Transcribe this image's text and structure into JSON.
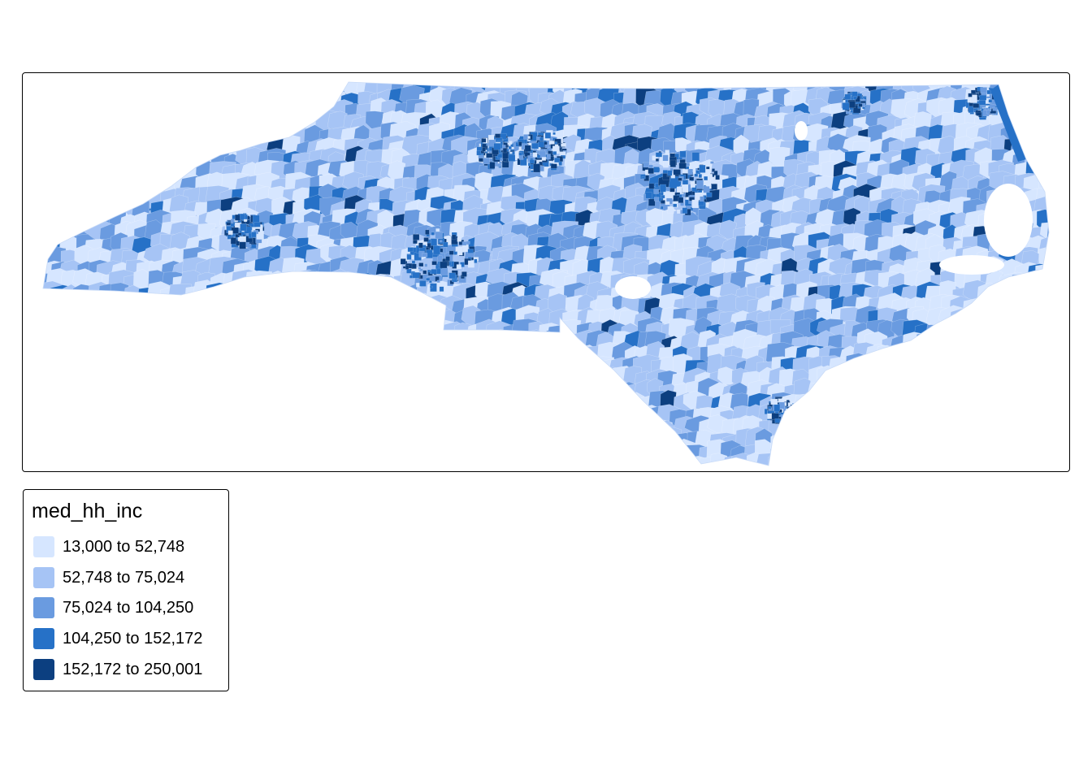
{
  "map": {
    "region": "North Carolina",
    "variable": "med_hh_inc",
    "palette": [
      "#d6e6ff",
      "#a6c4f5",
      "#6a9be0",
      "#2671c7",
      "#0c3f80"
    ]
  },
  "legend": {
    "title": "med_hh_inc",
    "items": [
      {
        "label": "13,000 to 52,748",
        "color": "#d6e6ff"
      },
      {
        "label": "52,748 to 75,024",
        "color": "#a6c4f5"
      },
      {
        "label": "75,024 to 104,250",
        "color": "#6a9be0"
      },
      {
        "label": "104,250 to 152,172",
        "color": "#2671c7"
      },
      {
        "label": "152,172 to 250,001",
        "color": "#0c3f80"
      }
    ]
  }
}
